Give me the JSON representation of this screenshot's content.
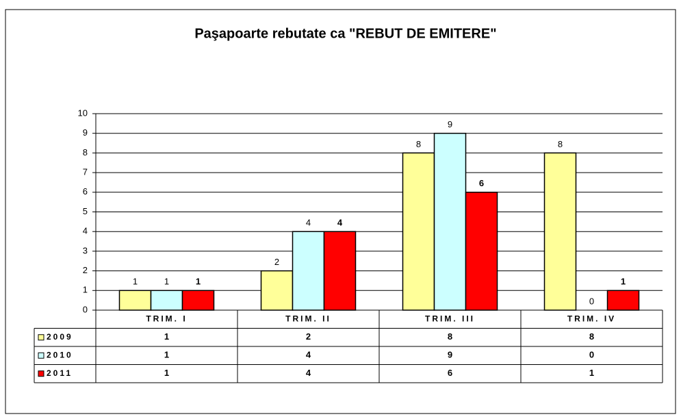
{
  "chart_data": {
    "type": "bar",
    "title": "Paşapoarte rebutate ca \"REBUT DE EMITERE\"",
    "categories": [
      "TRIM. I",
      "TRIM. II",
      "TRIM. III",
      "TRIM. IV"
    ],
    "series": [
      {
        "name": "2009",
        "color": "#ffff99",
        "values": [
          1,
          2,
          8,
          8
        ]
      },
      {
        "name": "2010",
        "color": "#ccffff",
        "values": [
          1,
          4,
          9,
          0
        ]
      },
      {
        "name": "2011",
        "color": "#ff0000",
        "values": [
          1,
          4,
          6,
          1
        ]
      }
    ],
    "ylim": [
      0,
      10
    ],
    "yticks": [
      0,
      1,
      2,
      3,
      4,
      5,
      6,
      7,
      8,
      9,
      10
    ],
    "grid": true
  }
}
